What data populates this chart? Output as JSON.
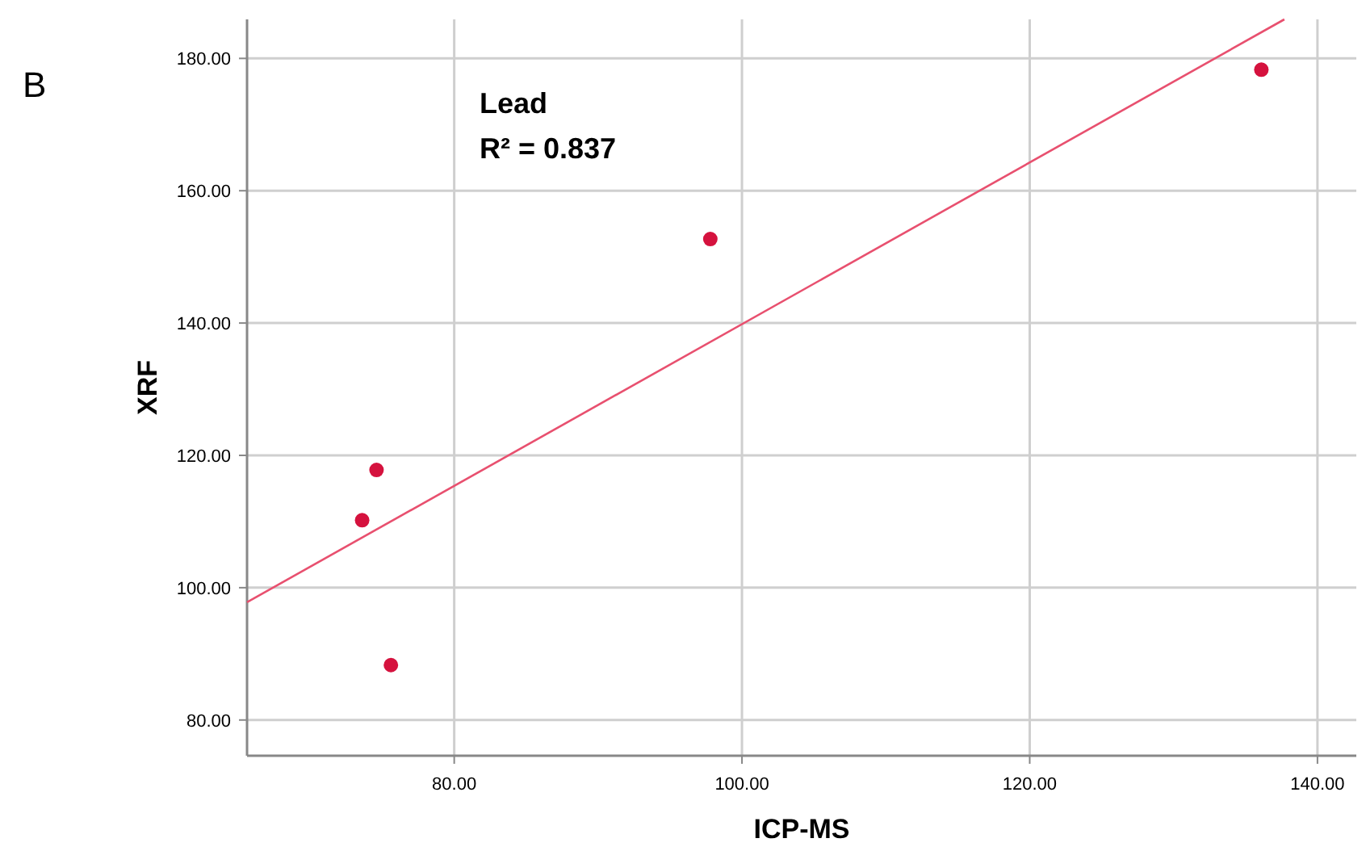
{
  "chart_data": {
    "type": "scatter",
    "xlabel": "ICP-MS",
    "ylabel": "XRF",
    "annotations": [
      "B",
      "Lead",
      "R² = 0.837"
    ],
    "xlim": [
      65.6,
      142.7
    ],
    "ylim": [
      74.6,
      185.9
    ],
    "xticks": [
      {
        "value": 80,
        "label": "80.00"
      },
      {
        "value": 100,
        "label": "100.00"
      },
      {
        "value": 120,
        "label": "120.00"
      },
      {
        "value": 140,
        "label": "140.00"
      }
    ],
    "yticks": [
      {
        "value": 80,
        "label": "80.00"
      },
      {
        "value": 100,
        "label": "100.00"
      },
      {
        "value": 120,
        "label": "120.00"
      },
      {
        "value": 140,
        "label": "140.00"
      },
      {
        "value": 160,
        "label": "160.00"
      },
      {
        "value": 180,
        "label": "180.00"
      }
    ],
    "grid": true,
    "marker": "circle",
    "series": [
      {
        "color": "#d5123e",
        "x": [
          73.6,
          74.6,
          75.6,
          97.8,
          136.1
        ],
        "values": [
          110.2,
          117.8,
          88.3,
          152.7,
          178.3
        ]
      },
      {
        "type": "line",
        "color": "#e8506f",
        "x": [
          65.6,
          137.7
        ],
        "values": [
          97.8,
          185.9
        ],
        "marker": "none",
        "line_style": "solid"
      }
    ]
  }
}
